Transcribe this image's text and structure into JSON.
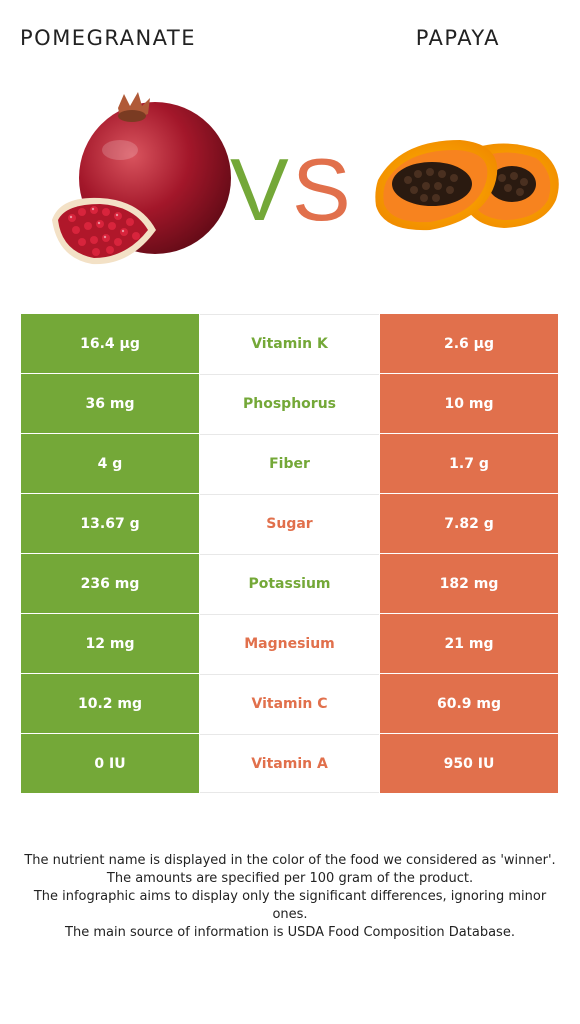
{
  "header": {
    "left_food": "POMEGRANATE",
    "right_food": "PAPAYA",
    "vs_left": "V",
    "vs_right": "S"
  },
  "colors": {
    "pomegranate_green": "#74a838",
    "papaya_orange": "#e1704c"
  },
  "rows": [
    {
      "nutrient": "Vitamin K",
      "left": "16.4 µg",
      "right": "2.6 µg",
      "winner": "left"
    },
    {
      "nutrient": "Phosphorus",
      "left": "36 mg",
      "right": "10 mg",
      "winner": "left"
    },
    {
      "nutrient": "Fiber",
      "left": "4 g",
      "right": "1.7 g",
      "winner": "left"
    },
    {
      "nutrient": "Sugar",
      "left": "13.67 g",
      "right": "7.82 g",
      "winner": "right"
    },
    {
      "nutrient": "Potassium",
      "left": "236 mg",
      "right": "182 mg",
      "winner": "left"
    },
    {
      "nutrient": "Magnesium",
      "left": "12 mg",
      "right": "21 mg",
      "winner": "right"
    },
    {
      "nutrient": "Vitamin C",
      "left": "10.2 mg",
      "right": "60.9 mg",
      "winner": "right"
    },
    {
      "nutrient": "Vitamin A",
      "left": "0 IU",
      "right": "950 IU",
      "winner": "right"
    }
  ],
  "notes": [
    "The nutrient name is displayed in the color of the food we considered as 'winner'.",
    "The amounts are specified per 100 gram of the product.",
    "The infographic aims to display only the significant differences, ignoring minor ones.",
    "The main source of information is USDA Food Composition Database."
  ]
}
